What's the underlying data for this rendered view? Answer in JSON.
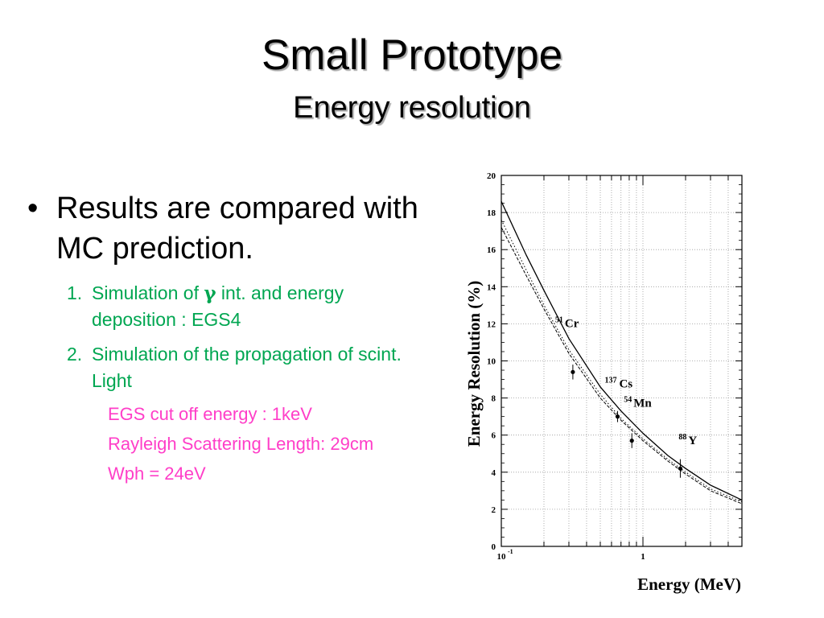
{
  "slide": {
    "title": "Small Prototype",
    "subtitle": "Energy resolution",
    "bullet_marker": "•",
    "bullet_text": "Results are compared with MC prediction.",
    "sub_items": [
      {
        "num": "1.",
        "text_before": "Simulation of ",
        "symbol": "γ",
        "text_after": " int. and energy deposition : EGS4"
      },
      {
        "num": "2.",
        "text": "Simulation of the propagation of scint. Light"
      }
    ],
    "details": [
      "EGS cut off energy : 1keV",
      "Rayleigh Scattering Length: 29cm",
      "Wph = 24eV"
    ]
  },
  "colors": {
    "sub_list": "#00a651",
    "details": "#ff3ec8"
  },
  "chart_data": {
    "type": "scatter",
    "xlabel": "Energy (MeV)",
    "ylabel": "Energy Resolution (%)",
    "x_scale": "log",
    "xlim": [
      0.1,
      5.0
    ],
    "ylim": [
      0,
      20
    ],
    "x_tick_labels": [
      {
        "value": 0.1,
        "base": "10",
        "exp": "-1"
      },
      {
        "value": 1,
        "base": "1",
        "exp": ""
      }
    ],
    "y_ticks": [
      0,
      2,
      4,
      6,
      8,
      10,
      12,
      14,
      16,
      18,
      20
    ],
    "grid": true,
    "points": [
      {
        "isotope": "Cr",
        "mass": "51",
        "x": 0.32,
        "y": 9.4,
        "yerr": 0.4
      },
      {
        "isotope": "Cs",
        "mass": "137",
        "x": 0.662,
        "y": 7.0,
        "yerr": 0.3
      },
      {
        "isotope": "Mn",
        "mass": "54",
        "x": 0.835,
        "y": 5.7,
        "yerr": 0.4
      },
      {
        "isotope": "Y",
        "mass": "88",
        "x": 1.836,
        "y": 4.2,
        "yerr": 0.5
      }
    ],
    "curves": [
      {
        "style": "solid",
        "x": [
          0.1,
          0.15,
          0.2,
          0.3,
          0.5,
          0.7,
          1.0,
          1.5,
          2.0,
          3.0,
          5.0
        ],
        "y": [
          18.6,
          15.7,
          13.8,
          11.2,
          8.6,
          7.3,
          6.1,
          4.9,
          4.2,
          3.3,
          2.5
        ]
      },
      {
        "style": "dotted",
        "x": [
          0.1,
          0.15,
          0.2,
          0.3,
          0.5,
          0.7,
          1.0,
          1.5,
          2.0,
          3.0,
          5.0
        ],
        "y": [
          17.6,
          14.9,
          13.0,
          10.6,
          8.2,
          6.9,
          5.8,
          4.7,
          4.0,
          3.1,
          2.4
        ]
      },
      {
        "style": "dashed",
        "x": [
          0.1,
          0.15,
          0.2,
          0.3,
          0.5,
          0.7,
          1.0,
          1.5,
          2.0,
          3.0,
          5.0
        ],
        "y": [
          17.2,
          14.6,
          12.8,
          10.4,
          8.0,
          6.8,
          5.7,
          4.6,
          3.9,
          3.0,
          2.3
        ]
      }
    ]
  }
}
